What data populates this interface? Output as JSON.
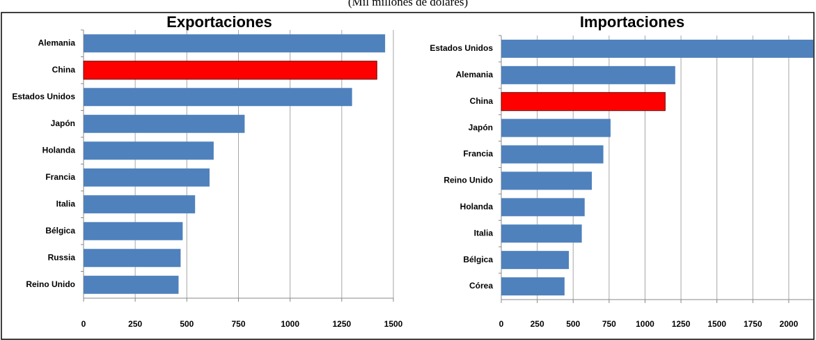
{
  "title": "(Mil millones de dólares)",
  "chart_data": [
    {
      "type": "bar",
      "orientation": "horizontal",
      "title": "Exportaciones",
      "categories": [
        "Alemania",
        "China",
        "Estados Unidos",
        "Japón",
        "Holanda",
        "Francia",
        "Italia",
        "Bélgica",
        "Russia",
        "Reino Unido"
      ],
      "values": [
        1460,
        1420,
        1300,
        780,
        630,
        610,
        540,
        480,
        470,
        460
      ],
      "colors": [
        "#4f81bd",
        "#ff0000",
        "#4f81bd",
        "#4f81bd",
        "#4f81bd",
        "#4f81bd",
        "#4f81bd",
        "#4f81bd",
        "#4f81bd",
        "#4f81bd"
      ],
      "xlim": [
        0,
        1500
      ],
      "xticks": [
        0,
        250,
        500,
        750,
        1000,
        1250,
        1500
      ],
      "grid": true
    },
    {
      "type": "bar",
      "orientation": "horizontal",
      "title": "Importaciones",
      "categories": [
        "Estados Unidos",
        "Alemania",
        "China",
        "Japón",
        "Francia",
        "Reino Unido",
        "Holanda",
        "Italia",
        "Bélgica",
        "Córea"
      ],
      "values": [
        2170,
        1210,
        1140,
        760,
        710,
        630,
        580,
        560,
        470,
        440
      ],
      "colors": [
        "#4f81bd",
        "#4f81bd",
        "#ff0000",
        "#4f81bd",
        "#4f81bd",
        "#4f81bd",
        "#4f81bd",
        "#4f81bd",
        "#4f81bd",
        "#4f81bd"
      ],
      "xlim": [
        0,
        2170
      ],
      "xticks": [
        0,
        250,
        500,
        750,
        1000,
        1250,
        1500,
        1750,
        2000
      ],
      "grid": true
    }
  ]
}
